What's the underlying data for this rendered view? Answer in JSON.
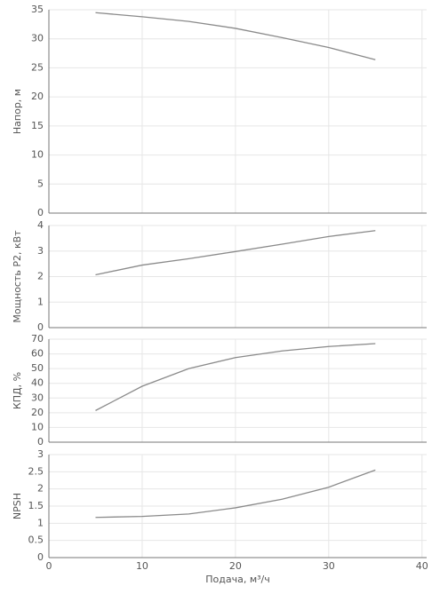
{
  "chart_data": [
    {
      "type": "line",
      "ylabel": "Напор, м",
      "x": [
        5,
        10,
        15,
        20,
        25,
        30,
        35
      ],
      "values": [
        34.5,
        33.8,
        33,
        31.8,
        30.2,
        28.5,
        26.4
      ],
      "color": "#8a8a8a",
      "xlim": [
        0,
        40.5
      ],
      "ylim": [
        0,
        35
      ],
      "yticks": [
        0,
        5,
        10,
        15,
        20,
        25,
        30,
        35
      ],
      "grid": true
    },
    {
      "type": "line",
      "ylabel": "Мощность Р2, кВт",
      "x": [
        5,
        10,
        15,
        20,
        25,
        30,
        35
      ],
      "values": [
        2.07,
        2.45,
        2.7,
        2.98,
        3.27,
        3.57,
        3.8
      ],
      "color": "#8a8a8a",
      "xlim": [
        0,
        40.5
      ],
      "ylim": [
        0,
        4
      ],
      "yticks": [
        0,
        1,
        2,
        3,
        4
      ],
      "grid": true
    },
    {
      "type": "line",
      "ylabel": "КПД, %",
      "x": [
        5,
        10,
        15,
        20,
        25,
        30,
        35
      ],
      "values": [
        21.5,
        38,
        50,
        57.5,
        62,
        65,
        67
      ],
      "color": "#8a8a8a",
      "xlim": [
        0,
        40.5
      ],
      "ylim": [
        0,
        70
      ],
      "yticks": [
        0,
        10,
        20,
        30,
        40,
        50,
        60,
        70
      ],
      "grid": true
    },
    {
      "type": "line",
      "ylabel": "NPSH",
      "xlabel": "Подача, м³/ч",
      "x": [
        5,
        10,
        15,
        20,
        25,
        30,
        35
      ],
      "values": [
        1.17,
        1.2,
        1.27,
        1.45,
        1.7,
        2.05,
        2.55
      ],
      "color": "#8a8a8a",
      "xlim": [
        0,
        40.5
      ],
      "ylim": [
        0,
        3
      ],
      "yticks": [
        0,
        0.5,
        1,
        1.5,
        2,
        2.5,
        3
      ],
      "xticks": [
        0,
        10,
        20,
        30,
        40
      ],
      "grid": true
    }
  ]
}
